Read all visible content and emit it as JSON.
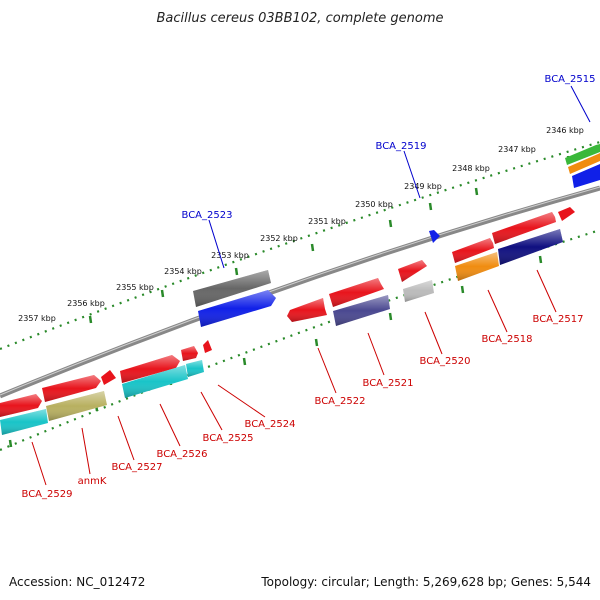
{
  "title": "Bacillus cereus 03BB102, complete genome",
  "footer": {
    "accession": "Accession: NC_012472",
    "summary": "Topology: circular; Length: 5,269,628 bp; Genes: 5,544"
  },
  "ticks": [
    "2346 kbp",
    "2347 kbp",
    "2348 kbp",
    "2349 kbp",
    "2350 kbp",
    "2351 kbp",
    "2352 kbp",
    "2353 kbp",
    "2354 kbp",
    "2355 kbp",
    "2356 kbp",
    "2357 kbp"
  ],
  "labels": {
    "bca_2515": "BCA_2515",
    "bca_2519": "BCA_2519",
    "bca_2523": "BCA_2523",
    "bca_2517": "BCA_2517",
    "bca_2518": "BCA_2518",
    "bca_2520": "BCA_2520",
    "bca_2521": "BCA_2521",
    "bca_2522": "BCA_2522",
    "bca_2524": "BCA_2524",
    "bca_2525": "BCA_2525",
    "bca_2526": "BCA_2526",
    "bca_2527": "BCA_2527",
    "anmk": "anmK",
    "bca_2529": "BCA_2529"
  },
  "colors": {
    "backbone": "#888888",
    "tick": "#2a8a2a",
    "red": "#e8141c",
    "cyan": "#19c4c8",
    "olive": "#b8b060",
    "blue": "#1020e8",
    "grey": "#666666",
    "lightgrey": "#bbbbbb",
    "slate": "#4a4890",
    "orange": "#f08c10",
    "navy": "#101080",
    "green": "#3ab83a"
  }
}
